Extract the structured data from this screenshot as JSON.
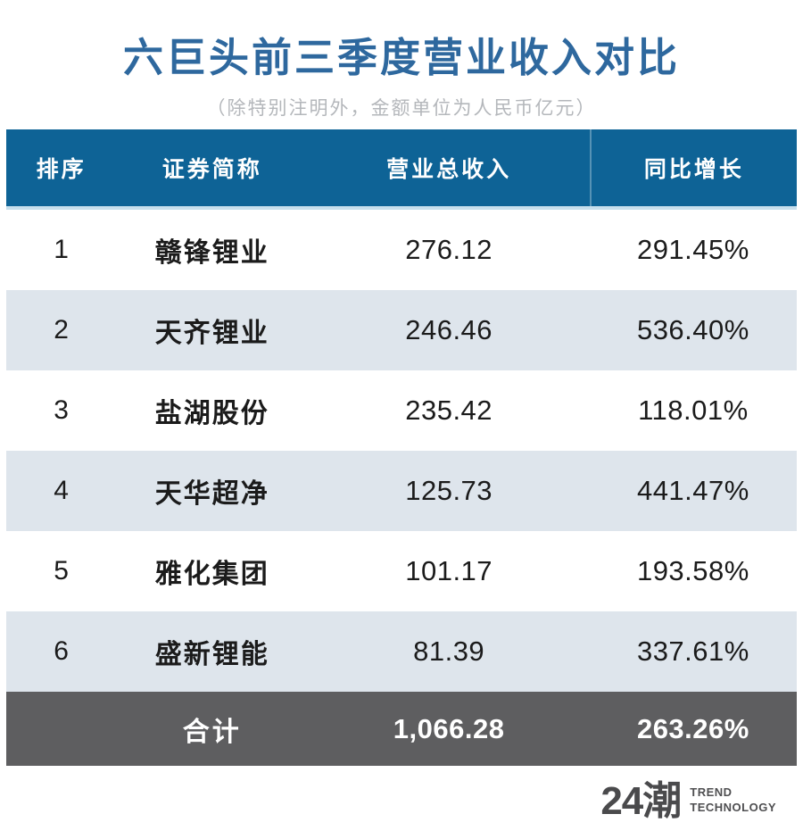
{
  "header": {
    "title": "六巨头前三季度营业收入对比",
    "subtitle": "（除特别注明外，金额单位为人民币亿元）"
  },
  "table": {
    "headers": [
      "排序",
      "证券简称",
      "营业总收入",
      "同比增长"
    ],
    "rows": [
      {
        "rank": "1",
        "name": "赣锋锂业",
        "revenue": "276.12",
        "growth": "291.45%"
      },
      {
        "rank": "2",
        "name": "天齐锂业",
        "revenue": "246.46",
        "growth": "536.40%"
      },
      {
        "rank": "3",
        "name": "盐湖股份",
        "revenue": "235.42",
        "growth": "118.01%"
      },
      {
        "rank": "4",
        "name": "天华超净",
        "revenue": "125.73",
        "growth": "441.47%"
      },
      {
        "rank": "5",
        "name": "雅化集团",
        "revenue": "101.17",
        "growth": "193.58%"
      },
      {
        "rank": "6",
        "name": "盛新锂能",
        "revenue": "81.39",
        "growth": "337.61%"
      }
    ],
    "footer": {
      "label": "合计",
      "revenue": "1,066.28",
      "growth": "263.26%"
    }
  },
  "logo": {
    "brand": "24潮",
    "tagline": [
      "TREND",
      "TECHNOLOGY"
    ]
  },
  "colors": {
    "title_blue": "#2e689e",
    "header_bg": "#0e6396",
    "row_alt_bg": "#dee5ec",
    "footer_bg": "#5e5e60",
    "subtitle_gray": "#b4b7bb",
    "logo_gray": "#4a4a4c"
  },
  "chart_data": {
    "type": "table",
    "title": "六巨头前三季度营业收入对比",
    "note": "（除特别注明外，金额单位为人民币亿元）",
    "columns": [
      "排序",
      "证券简称",
      "营业总收入",
      "同比增长"
    ],
    "rows": [
      [
        1,
        "赣锋锂业",
        276.12,
        291.45
      ],
      [
        2,
        "天齐锂业",
        246.46,
        536.4
      ],
      [
        3,
        "盐湖股份",
        235.42,
        118.01
      ],
      [
        4,
        "天华超净",
        125.73,
        441.47
      ],
      [
        5,
        "雅化集团",
        101.17,
        193.58
      ],
      [
        6,
        "盛新锂能",
        81.39,
        337.61
      ]
    ],
    "total": {
      "label": "合计",
      "revenue": 1066.28,
      "growth_pct": 263.26
    },
    "units": {
      "revenue": "人民币亿元",
      "growth": "%"
    }
  }
}
